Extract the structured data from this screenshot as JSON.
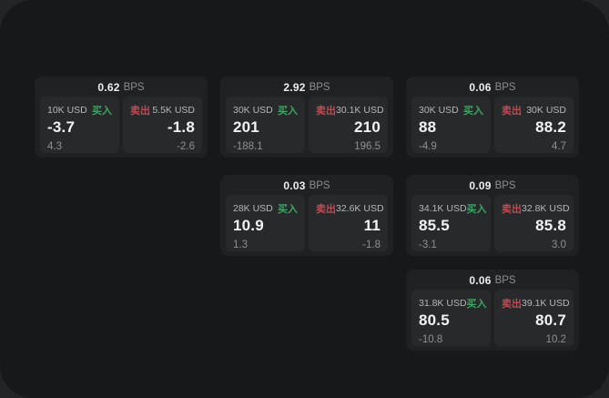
{
  "labels": {
    "buy": "买入",
    "sell": "卖出",
    "bps_suffix": "BPS"
  },
  "colors": {
    "background": "#232426",
    "surface": "#171819",
    "card": "#202123",
    "tile": "#28292b",
    "buy_accent": "#3fa465",
    "sell_accent": "#c14953",
    "text_primary": "#f2f3f4",
    "text_muted": "#8d9094"
  },
  "cards": [
    {
      "bps": "0.62",
      "buy": {
        "amount": "10K USD",
        "price": "-3.7",
        "delta": "4.3"
      },
      "sell": {
        "amount": "5.5K USD",
        "price": "-1.8",
        "delta": "-2.6"
      }
    },
    {
      "bps": "2.92",
      "buy": {
        "amount": "30K USD",
        "price": "201",
        "delta": "-188.1"
      },
      "sell": {
        "amount": "30.1K USD",
        "price": "210",
        "delta": "196.5"
      }
    },
    {
      "bps": "0.06",
      "buy": {
        "amount": "30K USD",
        "price": "88",
        "delta": "-4.9"
      },
      "sell": {
        "amount": "30K USD",
        "price": "88.2",
        "delta": "4.7"
      }
    },
    {
      "bps": "0.03",
      "buy": {
        "amount": "28K USD",
        "price": "10.9",
        "delta": "1.3"
      },
      "sell": {
        "amount": "32.6K USD",
        "price": "11",
        "delta": "-1.8"
      }
    },
    {
      "bps": "0.09",
      "buy": {
        "amount": "34.1K USD",
        "price": "85.5",
        "delta": "-3.1"
      },
      "sell": {
        "amount": "32.8K USD",
        "price": "85.8",
        "delta": "3.0"
      }
    },
    {
      "bps": "0.06",
      "buy": {
        "amount": "31.8K USD",
        "price": "80.5",
        "delta": "-10.8"
      },
      "sell": {
        "amount": "39.1K USD",
        "price": "80.7",
        "delta": "10.2"
      }
    }
  ]
}
